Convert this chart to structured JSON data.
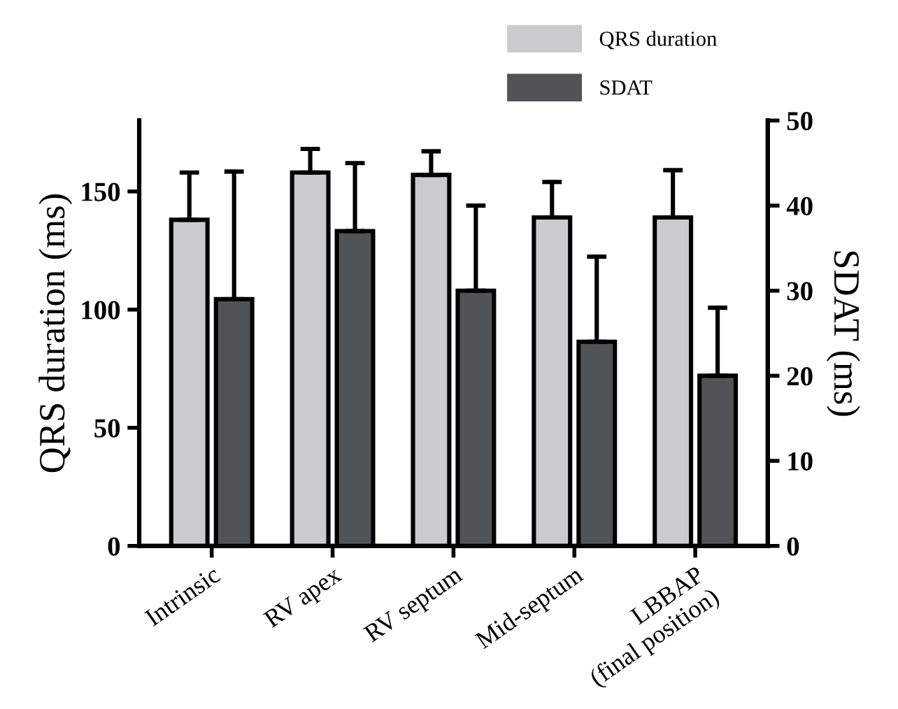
{
  "chart_data": {
    "type": "bar",
    "ylabel": "QRS duration (ms)",
    "y2label": "SDAT (ms)",
    "categories": [
      "Intrinsic",
      "RV apex",
      "RV septum",
      "Mid-septum",
      "LBBAP\n(final position)"
    ],
    "series": [
      {
        "name": "QRS duration",
        "color": "#c9cbcc",
        "values": [
          138,
          158,
          157,
          139,
          139
        ],
        "errors": [
          [
            138,
            158
          ],
          [
            158,
            168
          ],
          [
            157,
            167
          ],
          [
            139,
            154
          ],
          [
            139,
            159
          ]
        ]
      },
      {
        "name": "SDAT",
        "color": "#505456",
        "axis": "y2",
        "values": [
          29,
          37,
          30,
          24,
          20
        ],
        "errors": [
          [
            29,
            44
          ],
          [
            37,
            45
          ],
          [
            30,
            40
          ],
          [
            24,
            34
          ],
          [
            20,
            28
          ]
        ]
      }
    ],
    "ylim": [
      0,
      180
    ],
    "yticks": [
      0,
      50,
      100,
      150
    ],
    "y2lim": [
      0,
      50
    ],
    "y2ticks": [
      0,
      10,
      20,
      30,
      40,
      50
    ],
    "grid": false,
    "legend": "top right"
  }
}
